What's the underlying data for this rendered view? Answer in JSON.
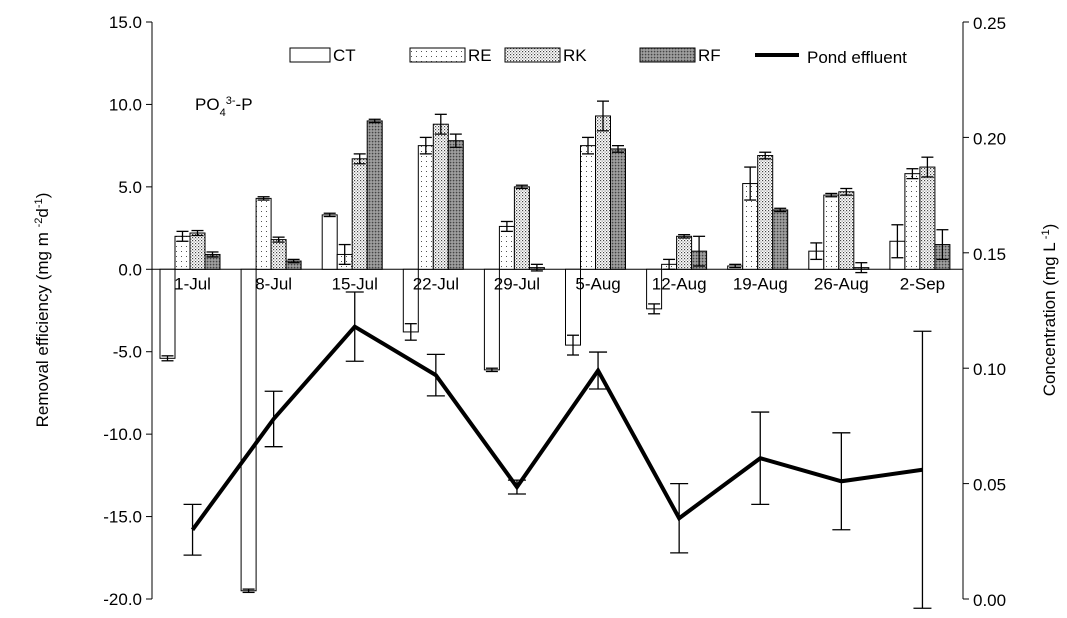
{
  "chart_data": {
    "type": "bar_line",
    "annotation": [
      {
        "text": "PO"
      },
      {
        "text": "4",
        "shift": "sub"
      },
      {
        "text": "3-",
        "shift": "super"
      },
      {
        "text": "-P"
      }
    ],
    "ylabel": [
      {
        "text": "Removal efficiency (mg m "
      },
      {
        "text": "-2",
        "shift": "super"
      },
      {
        "text": "d"
      },
      {
        "text": "-1",
        "shift": "super"
      },
      {
        "text": ")"
      }
    ],
    "y2label": [
      {
        "text": "Concentration (mg L"
      },
      {
        "text": " -1",
        "shift": "super"
      },
      {
        "text": ")"
      }
    ],
    "categories": [
      "1-Jul",
      "8-Jul",
      "15-Jul",
      "22-Jul",
      "29-Jul",
      "5-Aug",
      "12-Aug",
      "19-Aug",
      "26-Aug",
      "2-Sep"
    ],
    "series": [
      {
        "name": "CT",
        "pattern": "plain",
        "color": "#ffffff",
        "values": [
          -5.4,
          -19.5,
          3.3,
          -3.8,
          -6.1,
          -4.6,
          -2.4,
          0.2,
          1.1,
          1.7
        ],
        "errors": [
          0.15,
          0.1,
          0.1,
          0.5,
          0.1,
          0.6,
          0.3,
          0.1,
          0.5,
          1.0
        ]
      },
      {
        "name": "RE",
        "pattern": "sparse-dots",
        "color": "#ffffff",
        "values": [
          2.0,
          4.3,
          0.9,
          7.5,
          2.6,
          7.5,
          0.3,
          5.2,
          4.5,
          5.8
        ],
        "errors": [
          0.3,
          0.1,
          0.6,
          0.5,
          0.3,
          0.5,
          0.3,
          1.0,
          0.1,
          0.3
        ]
      },
      {
        "name": "RK",
        "pattern": "dense-dots",
        "color": "#e6e6e6",
        "values": [
          2.2,
          1.8,
          6.7,
          8.8,
          5.0,
          9.3,
          2.0,
          6.9,
          4.7,
          6.2
        ],
        "errors": [
          0.15,
          0.15,
          0.3,
          0.6,
          0.1,
          0.9,
          0.1,
          0.2,
          0.2,
          0.6
        ]
      },
      {
        "name": "RF",
        "pattern": "dark-dots",
        "color": "#8c8c8c",
        "values": [
          0.9,
          0.5,
          9.0,
          7.8,
          0.1,
          7.3,
          1.1,
          3.6,
          0.1,
          1.5
        ],
        "errors": [
          0.15,
          0.1,
          0.1,
          0.4,
          0.2,
          0.2,
          0.9,
          0.1,
          0.3,
          0.9
        ]
      },
      {
        "name": "Pond effluent",
        "type": "line",
        "axis": "y2",
        "color": "#000000",
        "values": [
          0.03,
          0.078,
          0.118,
          0.097,
          0.0485,
          0.099,
          0.035,
          0.061,
          0.051,
          0.056
        ],
        "errors": [
          0.011,
          0.012,
          0.015,
          0.009,
          0.003,
          0.008,
          0.015,
          0.02,
          0.021,
          0.06
        ]
      }
    ],
    "ylim": [
      -20,
      15
    ],
    "yticks": [
      {
        "value": -20,
        "label": "-20.0"
      },
      {
        "value": -15,
        "label": "-15.0"
      },
      {
        "value": -10,
        "label": "-10.0"
      },
      {
        "value": -5,
        "label": "-5.0"
      },
      {
        "value": 0,
        "label": "0.0"
      },
      {
        "value": 5,
        "label": "5.0"
      },
      {
        "value": 10,
        "label": "10.0"
      },
      {
        "value": 15,
        "label": "15.0"
      }
    ],
    "y2lim": [
      0,
      0.25
    ],
    "y2ticks": [
      {
        "value": 0,
        "label": "0.00"
      },
      0.05,
      {
        "value": 0.1,
        "label": "0.10"
      },
      0.15,
      {
        "value": 0.2,
        "label": "0.20"
      },
      0.25
    ],
    "legend": "top"
  }
}
